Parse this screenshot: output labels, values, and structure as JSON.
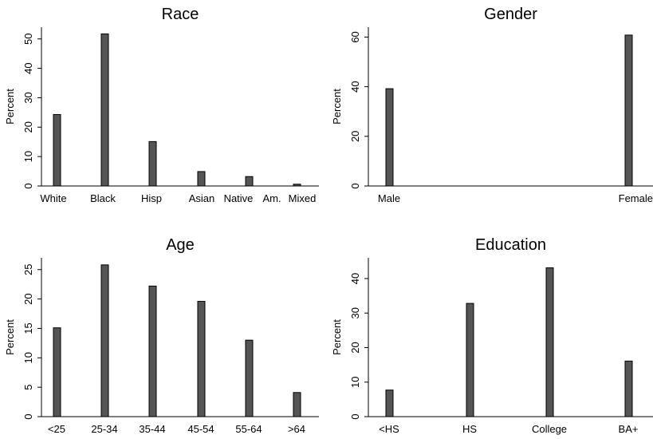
{
  "chart_data": [
    {
      "type": "bar",
      "title": "Race",
      "xlabel": "",
      "ylabel": "Percent",
      "categories": [
        "White",
        "Black",
        "Hisp",
        "Asian",
        "Native",
        "Am.",
        "Mixed"
      ],
      "values": [
        24.3,
        51.7,
        15.1,
        4.9,
        3.2,
        0,
        0.6
      ],
      "ylim": [
        0,
        54
      ],
      "yticks": [
        0,
        10,
        20,
        30,
        40,
        50
      ]
    },
    {
      "type": "bar",
      "title": "Gender",
      "xlabel": "",
      "ylabel": "Percent",
      "categories": [
        "Male",
        "Female"
      ],
      "values": [
        39.2,
        60.8
      ],
      "ylim": [
        0,
        64
      ],
      "yticks": [
        0,
        20,
        40,
        60
      ]
    },
    {
      "type": "bar",
      "title": "Age",
      "xlabel": "",
      "ylabel": "Percent",
      "categories": [
        "<25",
        "25-34",
        "35-44",
        "45-54",
        "55-64",
        ">64"
      ],
      "values": [
        15.1,
        25.8,
        22.2,
        19.6,
        13.0,
        4.1
      ],
      "ylim": [
        0,
        27
      ],
      "yticks": [
        0,
        5,
        10,
        15,
        20,
        25
      ]
    },
    {
      "type": "bar",
      "title": "Education",
      "xlabel": "",
      "ylabel": "Percent",
      "categories": [
        "<HS",
        "HS",
        "College",
        "BA+"
      ],
      "values": [
        7.7,
        32.8,
        43.1,
        16.1
      ],
      "ylim": [
        0,
        46
      ],
      "yticks": [
        0,
        10,
        20,
        30,
        40
      ]
    }
  ]
}
